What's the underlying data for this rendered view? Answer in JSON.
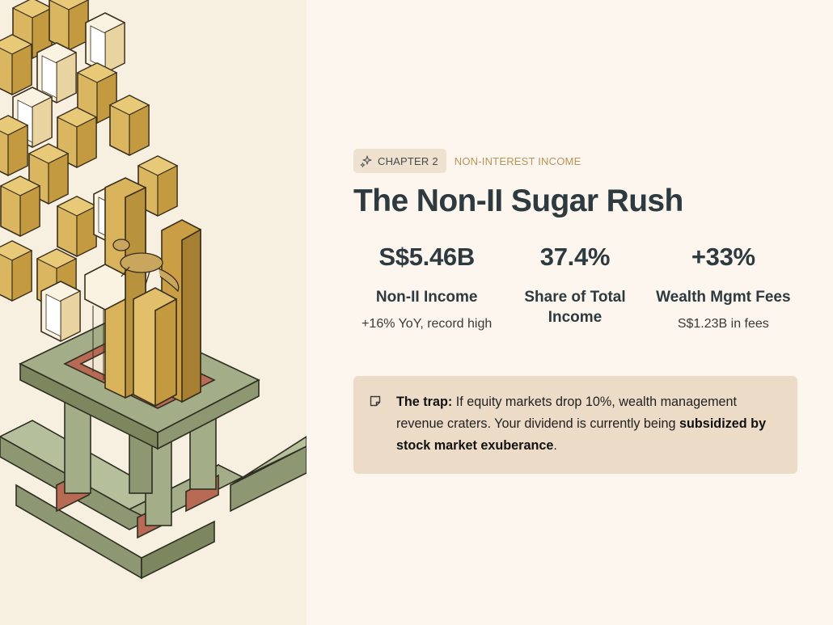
{
  "illustration": {
    "name": "hero-illustration"
  },
  "eyebrow": {
    "chapter": "CHAPTER 2",
    "section": "NON-INTEREST INCOME"
  },
  "title": "The Non-II Sugar Rush",
  "stats": [
    {
      "value": "S$5.46B",
      "label": "Non-II Income",
      "sub": "+16% YoY, record high"
    },
    {
      "value": "37.4%",
      "label": "Share of Total Income",
      "sub": ""
    },
    {
      "value": "+33%",
      "label": "Wealth Mgmt Fees",
      "sub": "S$1.23B in fees"
    }
  ],
  "callout": {
    "lead": "The trap:",
    "text1": " If equity markets drop 10%, wealth management revenue craters. Your dividend is currently being ",
    "emphasis": "subsidized by stock market exuberance",
    "text2": "."
  },
  "colors": {
    "page_bg": "#fdf6ee",
    "title": "#2d3a40",
    "accent": "#b8935a",
    "callout_bg": "#ecdcc7",
    "gold": "#d8b35c",
    "green": "#a3ad88"
  }
}
